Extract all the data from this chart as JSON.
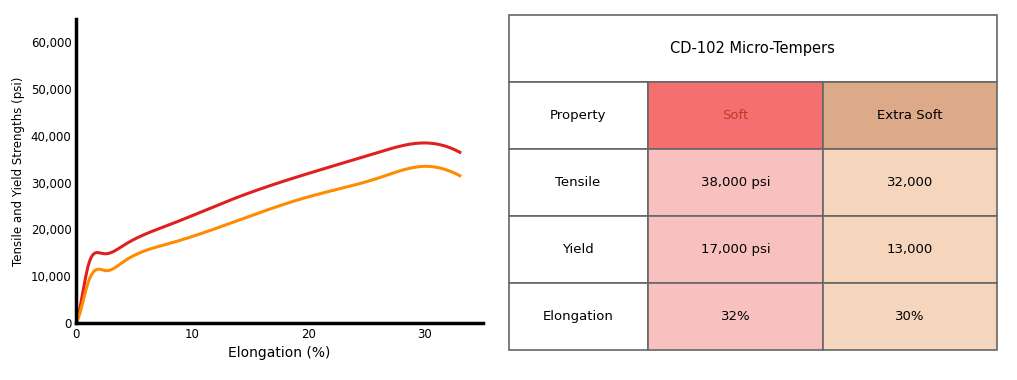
{
  "ylabel": "Tensile and Yield Strengths (psi)",
  "xlabel": "Elongation (%)",
  "ylim": [
    0,
    65000
  ],
  "xlim": [
    0,
    35
  ],
  "yticks": [
    0,
    10000,
    20000,
    30000,
    40000,
    50000,
    60000
  ],
  "ytick_labels": [
    "0",
    "10,000",
    "20,000",
    "30,000",
    "40,000",
    "50,000",
    "60,000"
  ],
  "xticks": [
    0,
    10,
    20,
    30
  ],
  "soft_color": "#E02020",
  "extra_soft_color": "#FF8C00",
  "soft_header_bg": "#F47070",
  "soft_data_bg": "#F9C0C0",
  "extra_soft_header_bg": "#DCAA88",
  "extra_soft_data_bg": "#F5D5BC",
  "table_title": "CD-102 Micro-Tempers",
  "col_headers": [
    "Property",
    "Soft",
    "Extra Soft"
  ],
  "rows": [
    [
      "Tensile",
      "38,000 psi",
      "32,000"
    ],
    [
      "Yield",
      "17,000 psi",
      "13,000"
    ],
    [
      "Elongation",
      "32%",
      "30%"
    ]
  ],
  "soft_curve_x": [
    0,
    0.3,
    1.0,
    2.0,
    2.5,
    4.0,
    8.0,
    14.0,
    20.0,
    26.0,
    30.0,
    31.5,
    33.0
  ],
  "soft_curve_y": [
    0,
    3000,
    12000,
    15000,
    14800,
    16500,
    21000,
    27000,
    32000,
    36500,
    38500,
    38000,
    36500
  ],
  "extra_soft_curve_x": [
    0,
    0.3,
    1.0,
    2.0,
    2.5,
    4.0,
    8.0,
    14.0,
    20.0,
    26.0,
    30.0,
    31.5,
    33.0
  ],
  "extra_soft_curve_y": [
    0,
    2000,
    8500,
    11500,
    11200,
    13000,
    17000,
    22000,
    27000,
    31000,
    33500,
    33000,
    31500
  ]
}
